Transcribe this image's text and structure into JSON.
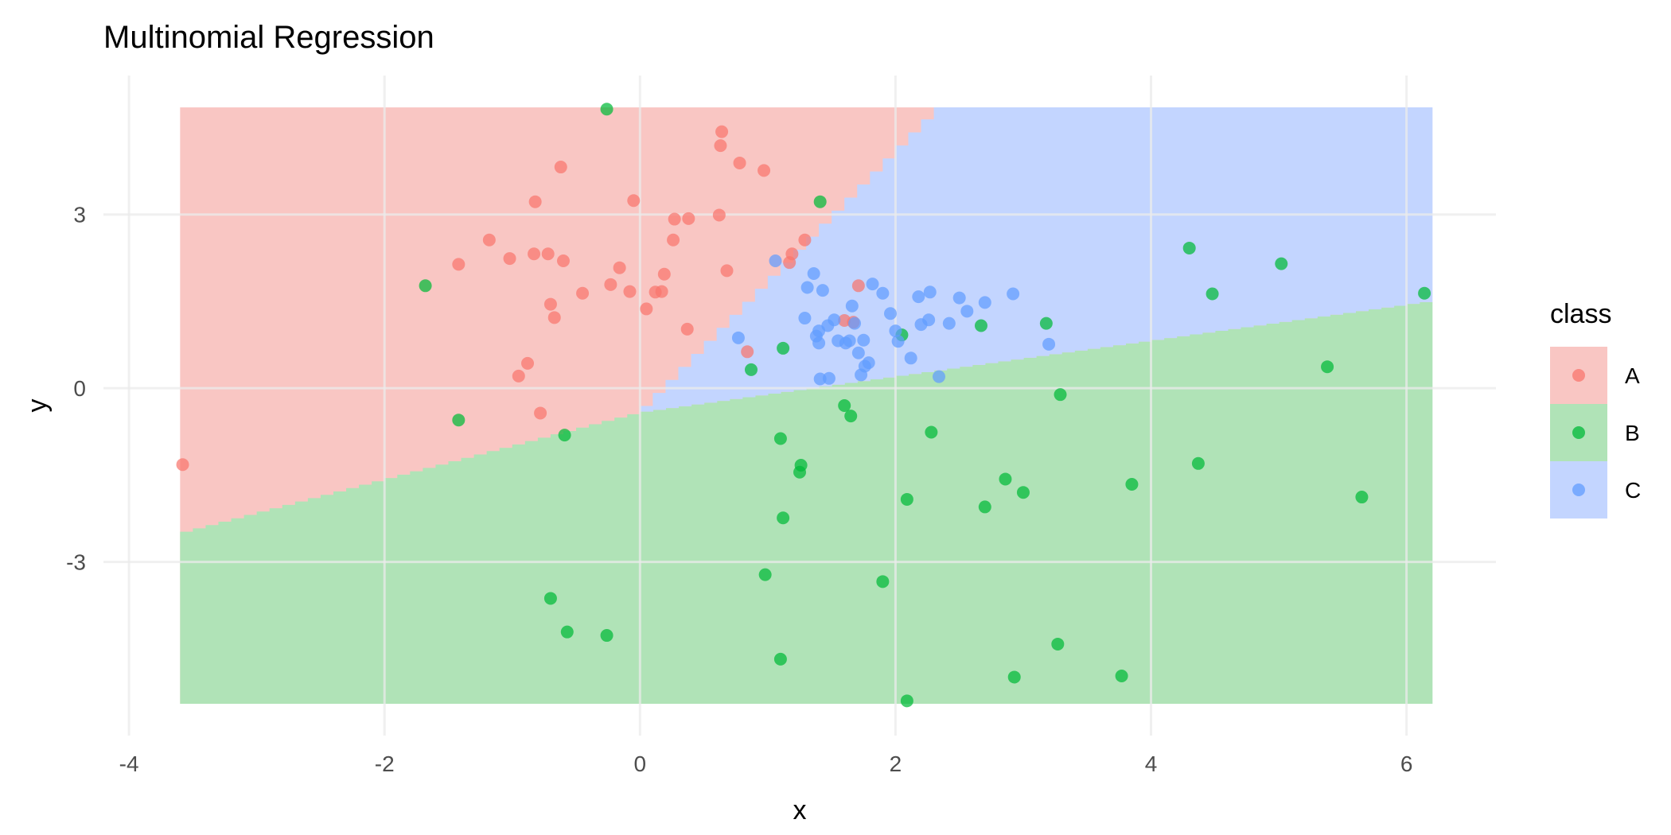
{
  "chart_data": {
    "type": "scatter",
    "title": "Multinomial Regression",
    "xlabel": "x",
    "ylabel": "y",
    "xlim": [
      -4.2,
      6.7
    ],
    "ylim": [
      -6.0,
      5.4
    ],
    "x_ticks": [
      -4,
      -2,
      0,
      2,
      4,
      6
    ],
    "y_ticks": [
      -3,
      0,
      3
    ],
    "x_tick_labels": [
      "-4",
      "-2",
      "0",
      "2",
      "4",
      "6"
    ],
    "y_tick_labels": [
      "-3",
      "0",
      "3"
    ],
    "grid": true,
    "legend": {
      "title": "class",
      "placement": "right",
      "entries": [
        {
          "label": "A",
          "color": "#F8766D",
          "fill": "#f9c6c3"
        },
        {
          "label": "B",
          "color": "#00BA38",
          "fill": "#b0e3b7"
        },
        {
          "label": "C",
          "color": "#619CFF",
          "fill": "#c3d5ff"
        }
      ]
    },
    "decision_regions": {
      "x_range": [
        -3.6,
        6.2
      ],
      "y_range": [
        -5.45,
        4.85
      ],
      "boundary_AB": {
        "slope": 0.58,
        "intercept": -0.42
      },
      "boundary_AC": {
        "slope": 2.25,
        "intercept": -0.42
      },
      "boundary_BC": {
        "slope": 0.31,
        "intercept": -0.42
      }
    },
    "series": [
      {
        "name": "A",
        "color": "#F8766D",
        "points": [
          [
            -3.58,
            -1.32
          ],
          [
            -1.42,
            2.14
          ],
          [
            -1.18,
            2.56
          ],
          [
            -1.02,
            2.24
          ],
          [
            -0.95,
            0.21
          ],
          [
            -0.88,
            0.43
          ],
          [
            -0.83,
            2.32
          ],
          [
            -0.82,
            3.22
          ],
          [
            -0.78,
            -0.43
          ],
          [
            -0.72,
            2.32
          ],
          [
            -0.7,
            1.45
          ],
          [
            -0.67,
            1.22
          ],
          [
            -0.62,
            3.82
          ],
          [
            -0.6,
            2.2
          ],
          [
            -0.45,
            1.64
          ],
          [
            -0.23,
            1.79
          ],
          [
            -0.16,
            2.08
          ],
          [
            -0.08,
            1.67
          ],
          [
            -0.05,
            3.24
          ],
          [
            0.05,
            1.37
          ],
          [
            0.12,
            1.66
          ],
          [
            0.17,
            1.67
          ],
          [
            0.19,
            1.97
          ],
          [
            0.26,
            2.56
          ],
          [
            0.27,
            2.92
          ],
          [
            0.37,
            1.02
          ],
          [
            0.38,
            2.93
          ],
          [
            0.62,
            2.99
          ],
          [
            0.63,
            4.19
          ],
          [
            0.64,
            4.43
          ],
          [
            0.68,
            2.03
          ],
          [
            0.78,
            3.89
          ],
          [
            0.84,
            0.63
          ],
          [
            0.97,
            3.76
          ],
          [
            1.17,
            2.17
          ],
          [
            1.19,
            2.32
          ],
          [
            1.29,
            2.56
          ],
          [
            1.6,
            1.17
          ],
          [
            1.67,
            1.14
          ],
          [
            1.71,
            1.77
          ]
        ]
      },
      {
        "name": "B",
        "color": "#00BA38",
        "points": [
          [
            -1.68,
            1.77
          ],
          [
            -1.42,
            -0.55
          ],
          [
            -0.59,
            -0.81
          ],
          [
            -0.7,
            -3.63
          ],
          [
            -0.57,
            -4.21
          ],
          [
            -0.26,
            -4.27
          ],
          [
            -0.26,
            4.82
          ],
          [
            0.87,
            0.32
          ],
          [
            0.98,
            -3.22
          ],
          [
            1.1,
            -0.87
          ],
          [
            1.12,
            0.69
          ],
          [
            1.12,
            -2.24
          ],
          [
            1.1,
            -4.68
          ],
          [
            1.26,
            -1.33
          ],
          [
            1.25,
            -1.45
          ],
          [
            1.41,
            3.22
          ],
          [
            1.6,
            -0.3
          ],
          [
            1.65,
            -0.48
          ],
          [
            1.9,
            -3.34
          ],
          [
            2.05,
            0.92
          ],
          [
            2.09,
            -1.92
          ],
          [
            2.09,
            -5.4
          ],
          [
            2.28,
            -0.76
          ],
          [
            2.67,
            1.08
          ],
          [
            2.7,
            -2.05
          ],
          [
            2.86,
            -1.57
          ],
          [
            2.93,
            -4.99
          ],
          [
            3.0,
            -1.8
          ],
          [
            3.18,
            1.12
          ],
          [
            3.27,
            -4.42
          ],
          [
            3.29,
            -0.11
          ],
          [
            3.77,
            -4.97
          ],
          [
            3.85,
            -1.66
          ],
          [
            4.3,
            2.42
          ],
          [
            4.37,
            -1.3
          ],
          [
            4.48,
            1.63
          ],
          [
            5.02,
            2.15
          ],
          [
            5.38,
            0.37
          ],
          [
            5.65,
            -1.88
          ],
          [
            6.14,
            1.64
          ]
        ]
      },
      {
        "name": "C",
        "color": "#619CFF",
        "points": [
          [
            0.77,
            0.87
          ],
          [
            1.06,
            2.2
          ],
          [
            1.29,
            1.21
          ],
          [
            1.31,
            1.74
          ],
          [
            1.36,
            1.98
          ],
          [
            1.38,
            0.9
          ],
          [
            1.4,
            0.78
          ],
          [
            1.4,
            0.99
          ],
          [
            1.41,
            0.16
          ],
          [
            1.43,
            1.69
          ],
          [
            1.47,
            1.08
          ],
          [
            1.48,
            0.17
          ],
          [
            1.52,
            1.18
          ],
          [
            1.55,
            0.82
          ],
          [
            1.61,
            0.78
          ],
          [
            1.64,
            0.82
          ],
          [
            1.66,
            1.42
          ],
          [
            1.68,
            1.12
          ],
          [
            1.71,
            0.61
          ],
          [
            1.73,
            0.23
          ],
          [
            1.75,
            0.83
          ],
          [
            1.76,
            0.38
          ],
          [
            1.79,
            0.44
          ],
          [
            1.82,
            1.8
          ],
          [
            1.9,
            1.64
          ],
          [
            1.96,
            1.29
          ],
          [
            2.0,
            0.99
          ],
          [
            2.02,
            0.81
          ],
          [
            2.12,
            0.52
          ],
          [
            2.18,
            1.58
          ],
          [
            2.2,
            1.1
          ],
          [
            2.26,
            1.18
          ],
          [
            2.27,
            1.66
          ],
          [
            2.34,
            0.2
          ],
          [
            2.42,
            1.12
          ],
          [
            2.5,
            1.56
          ],
          [
            2.56,
            1.33
          ],
          [
            2.7,
            1.48
          ],
          [
            2.92,
            1.63
          ],
          [
            3.2,
            0.76
          ]
        ]
      }
    ]
  }
}
